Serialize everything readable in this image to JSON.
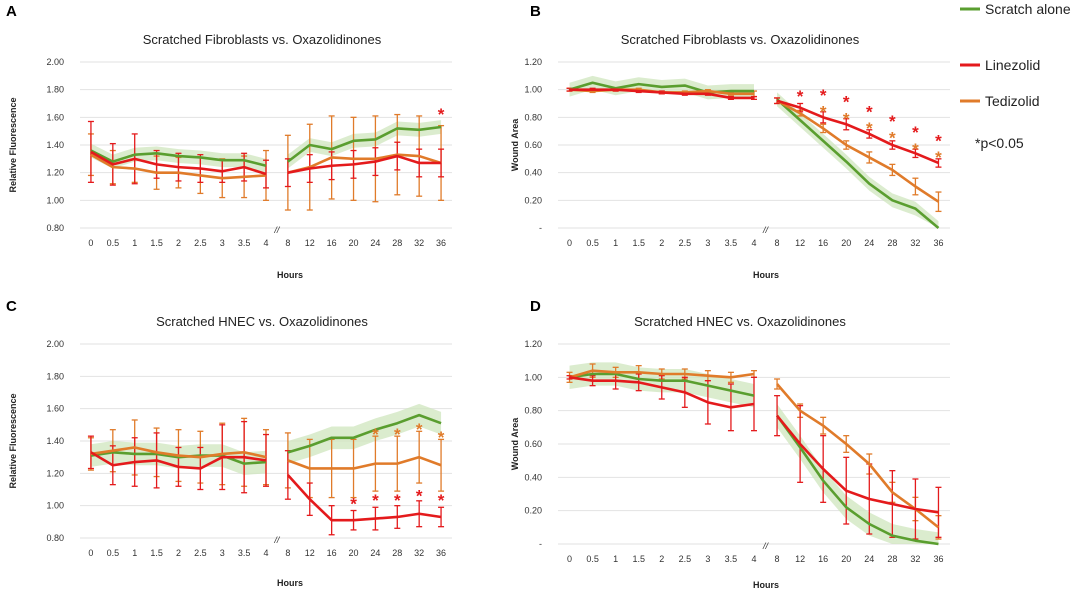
{
  "colors": {
    "scratch": "#5a9e2f",
    "linezolid": "#e41a1c",
    "tedizolid": "#e07b2a",
    "band": "#cfe6bd"
  },
  "legend": {
    "items": [
      {
        "name": "Scratch alone",
        "color": "#5a9e2f"
      },
      {
        "name": "Linezolid",
        "color": "#e41a1c"
      },
      {
        "name": "Tedizolid",
        "color": "#e07b2a"
      }
    ],
    "note": "*p<0.05"
  },
  "chart_data": [
    {
      "panel": "A",
      "type": "line",
      "title": "Scratched Fibroblasts vs. Oxazolidinones",
      "xlabel": "Hours",
      "ylabel": "Relative Fluorescence",
      "x": [
        "0",
        "0.5",
        "1",
        "1.5",
        "2",
        "2.5",
        "3",
        "3.5",
        "4",
        "8",
        "12",
        "16",
        "20",
        "24",
        "28",
        "32",
        "36"
      ],
      "break_label": "//",
      "ylim": [
        0.8,
        2.0
      ],
      "yticks": [
        0.8,
        1.0,
        1.2,
        1.4,
        1.6,
        1.8,
        2.0
      ],
      "ytick_labels": [
        "0.80",
        "1.00",
        "1.20",
        "1.40",
        "1.60",
        "1.80",
        "2.00"
      ],
      "series": [
        {
          "name": "Scratch alone",
          "values": [
            1.36,
            1.28,
            1.33,
            1.34,
            1.32,
            1.31,
            1.29,
            1.29,
            1.25,
            1.28,
            1.4,
            1.37,
            1.43,
            1.44,
            1.52,
            1.51,
            1.53
          ],
          "band": 0.05
        },
        {
          "name": "Tedizolid",
          "values": [
            1.33,
            1.24,
            1.23,
            1.2,
            1.2,
            1.18,
            1.16,
            1.17,
            1.18,
            1.2,
            1.24,
            1.31,
            1.3,
            1.3,
            1.33,
            1.32,
            1.27
          ],
          "errors": [
            0.15,
            0.12,
            0.1,
            0.12,
            0.11,
            0.13,
            0.14,
            0.15,
            0.18,
            0.27,
            0.31,
            0.3,
            0.3,
            0.31,
            0.29,
            0.29,
            0.27
          ]
        },
        {
          "name": "Linezolid",
          "values": [
            1.35,
            1.26,
            1.3,
            1.26,
            1.24,
            1.23,
            1.21,
            1.24,
            1.19,
            1.2,
            1.23,
            1.25,
            1.26,
            1.28,
            1.32,
            1.27,
            1.27
          ],
          "errors": [
            0.22,
            0.15,
            0.18,
            0.1,
            0.1,
            0.1,
            0.08,
            0.1,
            0.1,
            0.1,
            0.1,
            0.1,
            0.1,
            0.1,
            0.1,
            0.1,
            0.1
          ]
        }
      ],
      "annotations": [
        {
          "x": "36",
          "y": 1.63,
          "text": "*",
          "series": "Linezolid"
        }
      ]
    },
    {
      "panel": "B",
      "type": "line",
      "title": "Scratched Fibroblasts vs. Oxazolidinones",
      "xlabel": "Hours",
      "ylabel": "Wound Area",
      "x": [
        "0",
        "0.5",
        "1",
        "1.5",
        "2",
        "2.5",
        "3",
        "3.5",
        "4",
        "8",
        "12",
        "16",
        "20",
        "24",
        "28",
        "32",
        "36"
      ],
      "break_label": "//",
      "ylim": [
        0,
        1.2
      ],
      "yticks": [
        0,
        0.2,
        0.4,
        0.6,
        0.8,
        1.0,
        1.2
      ],
      "ytick_labels": [
        "-",
        "0.20",
        "0.40",
        "0.60",
        "0.80",
        "1.00",
        "1.20"
      ],
      "series": [
        {
          "name": "Scratch alone",
          "values": [
            1.0,
            1.05,
            1.01,
            1.04,
            1.02,
            1.03,
            0.98,
            0.99,
            0.99,
            0.93,
            0.78,
            0.63,
            0.48,
            0.32,
            0.2,
            0.14,
            0.0
          ],
          "band": 0.05
        },
        {
          "name": "Tedizolid",
          "values": [
            1.0,
            0.99,
            1.0,
            1.0,
            0.98,
            0.98,
            0.99,
            0.97,
            0.97,
            0.92,
            0.83,
            0.72,
            0.6,
            0.51,
            0.42,
            0.3,
            0.19
          ],
          "errors": [
            0.01,
            0.01,
            0.01,
            0.01,
            0.01,
            0.01,
            0.01,
            0.01,
            0.02,
            0.02,
            0.02,
            0.03,
            0.03,
            0.04,
            0.04,
            0.06,
            0.07
          ]
        },
        {
          "name": "Linezolid",
          "values": [
            1.0,
            1.0,
            1.0,
            0.99,
            0.98,
            0.97,
            0.97,
            0.94,
            0.94,
            0.92,
            0.87,
            0.8,
            0.75,
            0.68,
            0.6,
            0.54,
            0.47
          ],
          "errors": [
            0.01,
            0.01,
            0.01,
            0.01,
            0.01,
            0.01,
            0.01,
            0.01,
            0.01,
            0.02,
            0.03,
            0.04,
            0.04,
            0.03,
            0.03,
            0.03,
            0.03
          ]
        }
      ],
      "annotations": [
        {
          "x": "12",
          "y": 0.96,
          "text": "*",
          "series": "Linezolid"
        },
        {
          "x": "16",
          "y": 0.97,
          "text": "*",
          "series": "Linezolid"
        },
        {
          "x": "16",
          "y": 0.85,
          "text": "*",
          "series": "Tedizolid"
        },
        {
          "x": "20",
          "y": 0.92,
          "text": "*",
          "series": "Linezolid"
        },
        {
          "x": "20",
          "y": 0.8,
          "text": "*",
          "series": "Tedizolid"
        },
        {
          "x": "24",
          "y": 0.85,
          "text": "*",
          "series": "Linezolid"
        },
        {
          "x": "24",
          "y": 0.73,
          "text": "*",
          "series": "Tedizolid"
        },
        {
          "x": "28",
          "y": 0.78,
          "text": "*",
          "series": "Linezolid"
        },
        {
          "x": "28",
          "y": 0.66,
          "text": "*",
          "series": "Tedizolid"
        },
        {
          "x": "32",
          "y": 0.7,
          "text": "*",
          "series": "Linezolid"
        },
        {
          "x": "32",
          "y": 0.58,
          "text": "*",
          "series": "Tedizolid"
        },
        {
          "x": "36",
          "y": 0.64,
          "text": "*",
          "series": "Linezolid"
        },
        {
          "x": "36",
          "y": 0.52,
          "text": "*",
          "series": "Tedizolid"
        }
      ]
    },
    {
      "panel": "C",
      "type": "line",
      "title": "Scratched HNEC vs. Oxazolidinones",
      "xlabel": "Hours",
      "ylabel": "Relative Fluorescence",
      "x": [
        "0",
        "0.5",
        "1",
        "1.5",
        "2",
        "2.5",
        "3",
        "3.5",
        "4",
        "8",
        "12",
        "16",
        "20",
        "24",
        "28",
        "32",
        "36"
      ],
      "break_label": "//",
      "ylim": [
        0.8,
        2.0
      ],
      "yticks": [
        0.8,
        1.0,
        1.2,
        1.4,
        1.6,
        1.8,
        2.0
      ],
      "ytick_labels": [
        "0.80",
        "1.00",
        "1.20",
        "1.40",
        "1.60",
        "1.80",
        "2.00"
      ],
      "series": [
        {
          "name": "Scratch alone",
          "values": [
            1.31,
            1.33,
            1.32,
            1.32,
            1.3,
            1.31,
            1.31,
            1.26,
            1.27,
            1.33,
            1.37,
            1.42,
            1.42,
            1.47,
            1.51,
            1.56,
            1.51
          ],
          "band": 0.07
        },
        {
          "name": "Tedizolid",
          "values": [
            1.32,
            1.34,
            1.36,
            1.33,
            1.31,
            1.3,
            1.32,
            1.33,
            1.3,
            1.28,
            1.23,
            1.23,
            1.23,
            1.26,
            1.26,
            1.3,
            1.25
          ],
          "errors": [
            0.1,
            0.13,
            0.17,
            0.15,
            0.16,
            0.16,
            0.19,
            0.21,
            0.17,
            0.17,
            0.18,
            0.18,
            0.18,
            0.17,
            0.17,
            0.16,
            0.16
          ]
        },
        {
          "name": "Linezolid",
          "values": [
            1.33,
            1.25,
            1.27,
            1.28,
            1.24,
            1.23,
            1.3,
            1.3,
            1.28,
            1.19,
            1.04,
            0.91,
            0.91,
            0.92,
            0.93,
            0.95,
            0.93
          ],
          "errors": [
            0.1,
            0.12,
            0.15,
            0.17,
            0.12,
            0.13,
            0.2,
            0.22,
            0.16,
            0.15,
            0.1,
            0.09,
            0.06,
            0.07,
            0.07,
            0.08,
            0.06
          ]
        }
      ],
      "annotations": [
        {
          "x": "24",
          "y": 1.45,
          "text": "*",
          "series": "Tedizolid"
        },
        {
          "x": "28",
          "y": 1.45,
          "text": "*",
          "series": "Tedizolid"
        },
        {
          "x": "32",
          "y": 1.48,
          "text": "*",
          "series": "Tedizolid"
        },
        {
          "x": "36",
          "y": 1.43,
          "text": "*",
          "series": "Tedizolid"
        },
        {
          "x": "20",
          "y": 1.02,
          "text": "*",
          "series": "Linezolid"
        },
        {
          "x": "24",
          "y": 1.04,
          "text": "*",
          "series": "Linezolid"
        },
        {
          "x": "28",
          "y": 1.04,
          "text": "*",
          "series": "Linezolid"
        },
        {
          "x": "32",
          "y": 1.07,
          "text": "*",
          "series": "Linezolid"
        },
        {
          "x": "36",
          "y": 1.04,
          "text": "*",
          "series": "Linezolid"
        }
      ]
    },
    {
      "panel": "D",
      "type": "line",
      "title": "Scratched HNEC vs. Oxazolidinones",
      "xlabel": "Hours",
      "ylabel": "Wound Area",
      "x": [
        "0",
        "0.5",
        "1",
        "1.5",
        "2",
        "2.5",
        "3",
        "3.5",
        "4",
        "8",
        "12",
        "16",
        "20",
        "24",
        "28",
        "32",
        "36"
      ],
      "break_label": "//",
      "ylim": [
        0,
        1.2
      ],
      "yticks": [
        0,
        0.2,
        0.4,
        0.6,
        0.8,
        1.0,
        1.2
      ],
      "ytick_labels": [
        "-",
        "0.20",
        "0.40",
        "0.60",
        "0.80",
        "1.00",
        "1.20"
      ],
      "series": [
        {
          "name": "Scratch alone",
          "values": [
            1.0,
            1.02,
            1.02,
            0.99,
            0.98,
            0.98,
            0.95,
            0.92,
            0.89,
            0.77,
            0.58,
            0.38,
            0.22,
            0.12,
            0.05,
            0.02,
            0.0
          ],
          "band": 0.07
        },
        {
          "name": "Tedizolid",
          "values": [
            1.0,
            1.04,
            1.03,
            1.03,
            1.02,
            1.02,
            1.01,
            1.0,
            1.02,
            0.96,
            0.8,
            0.71,
            0.6,
            0.48,
            0.31,
            0.21,
            0.1
          ],
          "errors": [
            0.03,
            0.04,
            0.03,
            0.04,
            0.03,
            0.03,
            0.03,
            0.03,
            0.02,
            0.03,
            0.04,
            0.05,
            0.05,
            0.06,
            0.06,
            0.07,
            0.07
          ]
        },
        {
          "name": "Linezolid",
          "values": [
            1.0,
            0.98,
            0.98,
            0.97,
            0.94,
            0.91,
            0.85,
            0.82,
            0.84,
            0.77,
            0.6,
            0.45,
            0.32,
            0.27,
            0.24,
            0.21,
            0.19
          ],
          "errors": [
            0.01,
            0.03,
            0.05,
            0.05,
            0.07,
            0.09,
            0.13,
            0.14,
            0.16,
            0.12,
            0.23,
            0.2,
            0.2,
            0.21,
            0.2,
            0.18,
            0.15
          ]
        }
      ],
      "annotations": []
    }
  ]
}
